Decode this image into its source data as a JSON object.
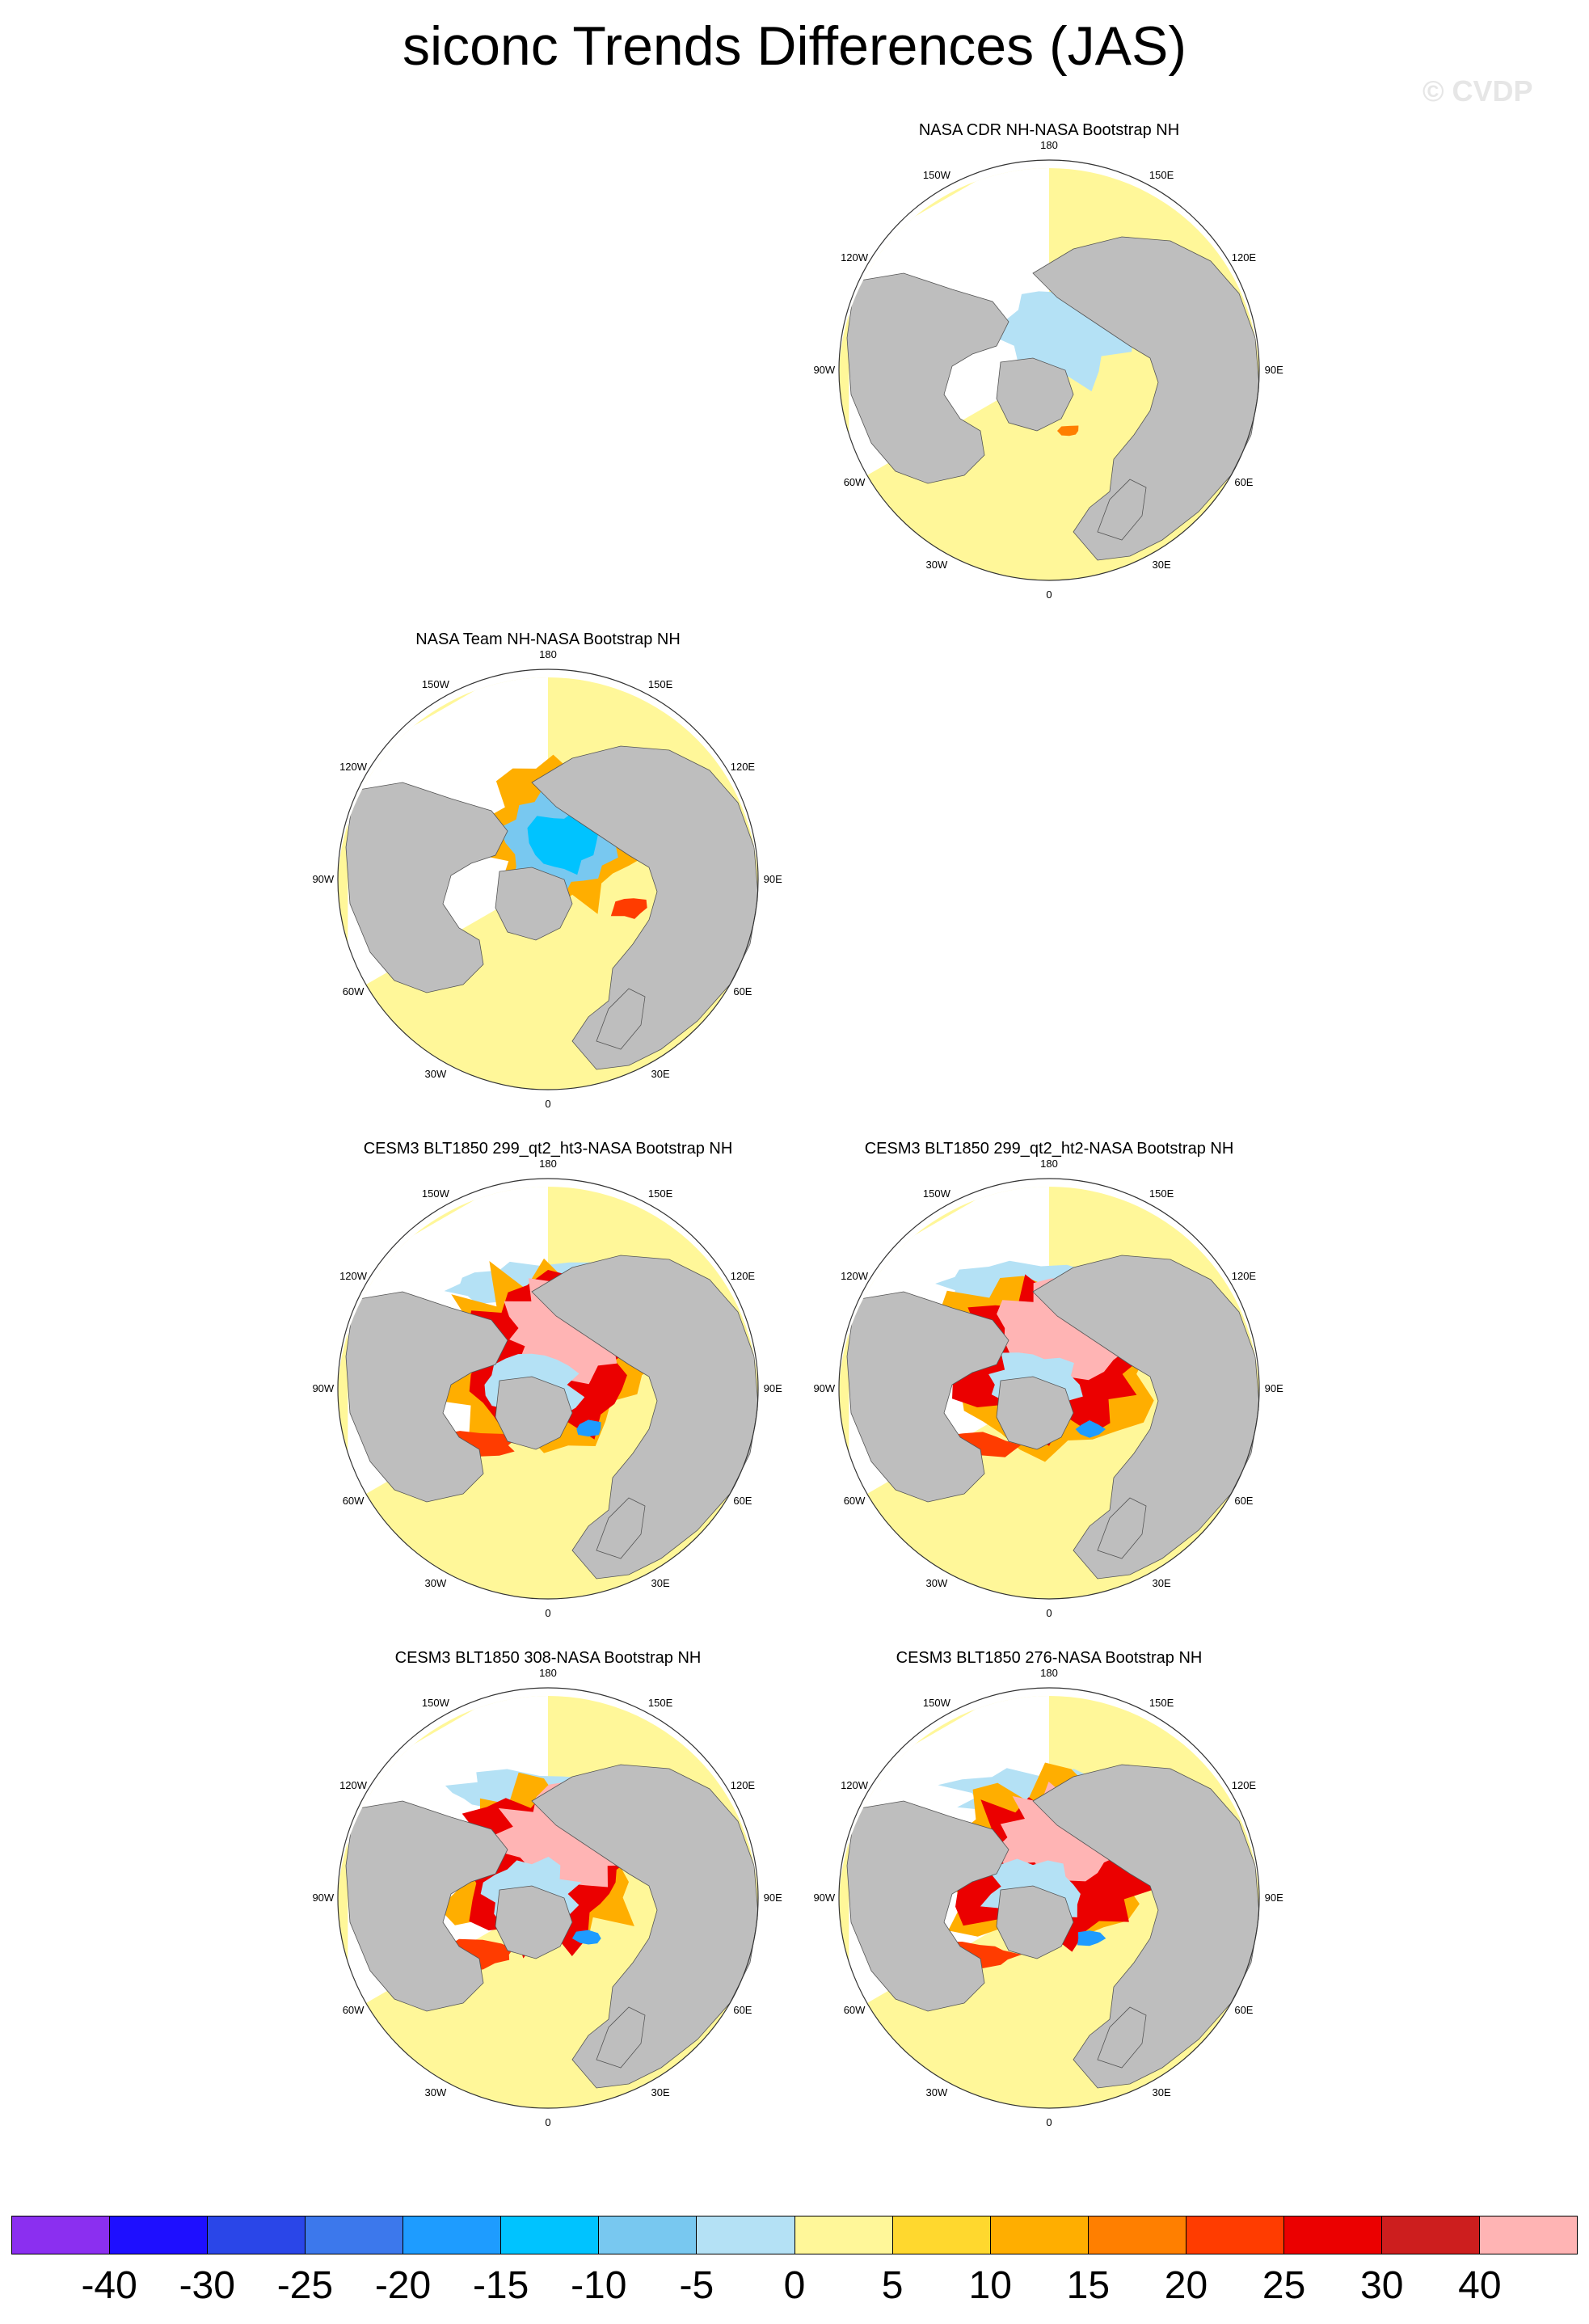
{
  "title": "siconc Trends Differences (JAS)",
  "watermark": "© CVDP",
  "longitude_labels": [
    "180",
    "150E",
    "120E",
    "90E",
    "60E",
    "30E",
    "0",
    "30W",
    "60W",
    "90W",
    "120W",
    "150W"
  ],
  "panels": [
    {
      "id": "cdr",
      "title": "NASA CDR NH-NASA Bootstrap NH",
      "pattern": "cdr"
    },
    {
      "id": "team",
      "title": "NASA Team NH-NASA Bootstrap NH",
      "pattern": "team"
    },
    {
      "id": "ht3",
      "title": "CESM3 BLT1850 299_qt2_ht3-NASA Bootstrap NH",
      "pattern": "model"
    },
    {
      "id": "ht2",
      "title": "CESM3 BLT1850 299_qt2_ht2-NASA Bootstrap NH",
      "pattern": "model"
    },
    {
      "id": "m308",
      "title": "CESM3 BLT1850 308-NASA Bootstrap NH",
      "pattern": "model"
    },
    {
      "id": "m276",
      "title": "CESM3 BLT1850 276-NASA Bootstrap NH",
      "pattern": "model"
    }
  ],
  "colorbar": {
    "labels": [
      "-40",
      "-30",
      "-25",
      "-20",
      "-15",
      "-10",
      "-5",
      "0",
      "5",
      "10",
      "15",
      "20",
      "25",
      "30",
      "40"
    ],
    "colors": [
      "#8b2ff0",
      "#1e0fff",
      "#2a46e8",
      "#3c78ec",
      "#1e9cff",
      "#00c3ff",
      "#78c8f0",
      "#b4e1f5",
      "#fff799",
      "#ffd82e",
      "#ffae00",
      "#ff7f00",
      "#ff3c00",
      "#eb0000",
      "#cd1e1e",
      "#ffb4b4"
    ]
  },
  "map_colors": {
    "land": "#bebebe",
    "ocean": "#fff799",
    "missing": "#ffffff",
    "ice_low": "#b4e1f5"
  }
}
